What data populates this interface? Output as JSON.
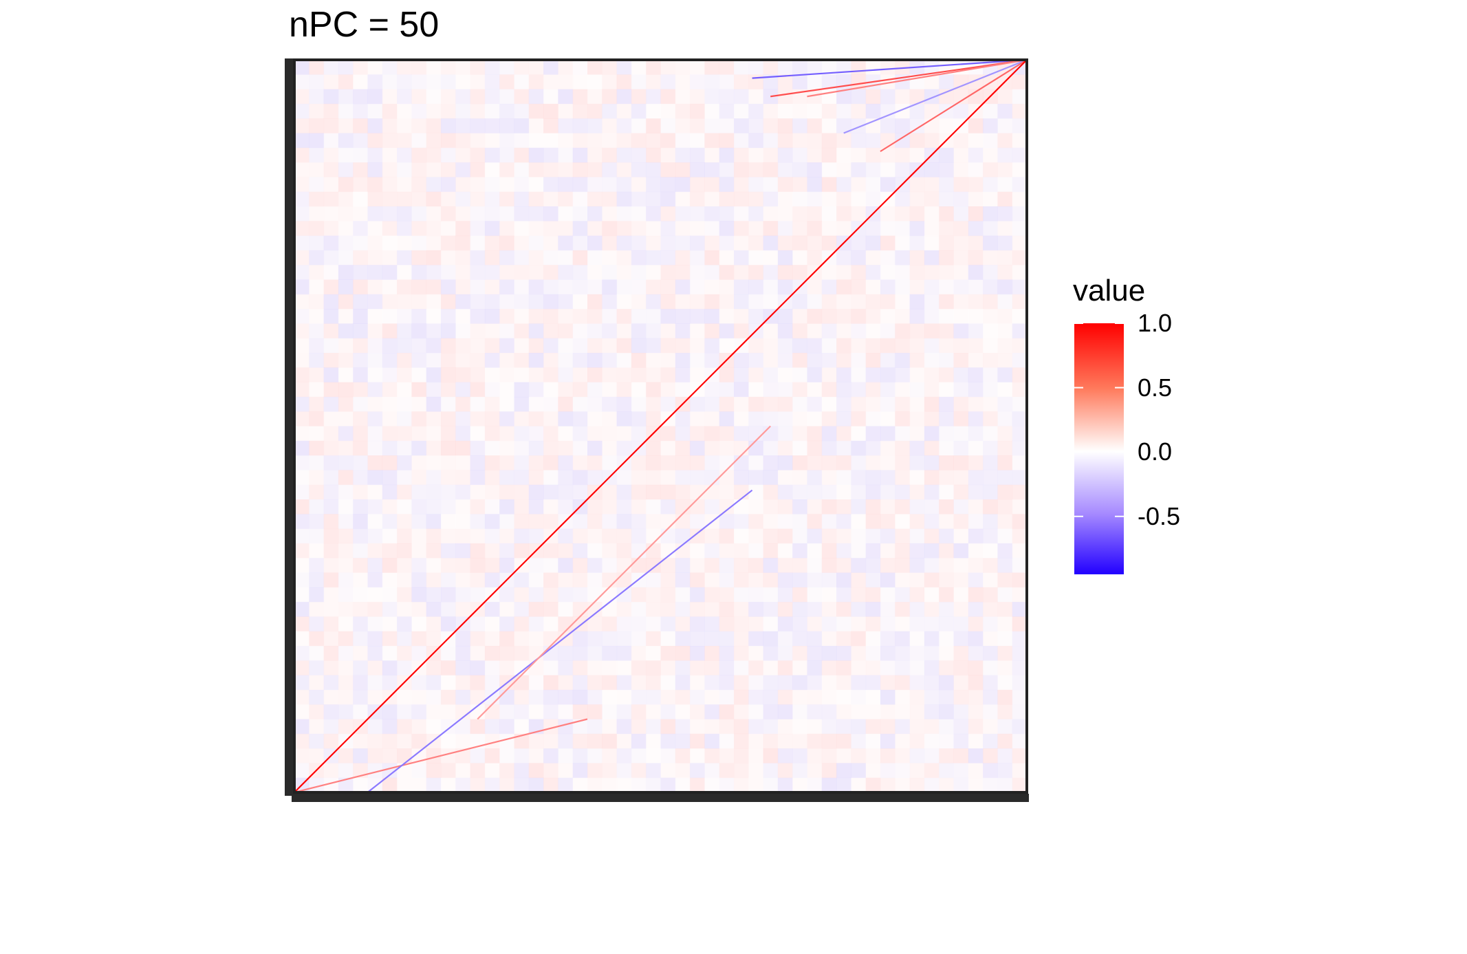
{
  "chart_data": {
    "type": "heatmap",
    "title": "nPC = 50",
    "xlabel": "",
    "ylabel": "",
    "grid": false,
    "legend": {
      "title": "value",
      "position": "right",
      "range": [
        -0.95,
        1.0
      ],
      "ticks": [
        {
          "value": 1.0,
          "label": "1.0"
        },
        {
          "value": 0.5,
          "label": "0.5"
        },
        {
          "value": 0.0,
          "label": "0.0"
        },
        {
          "value": -0.5,
          "label": "-0.5"
        }
      ],
      "colors": {
        "low": "#2200ff",
        "mid": "#ffffff",
        "high": "#ff0000"
      }
    },
    "matrix": {
      "rows": 400,
      "cols": 400,
      "description_values": {
        "main_diagonal": 1.0,
        "background_range": [
          -0.15,
          0.15
        ]
      },
      "off_diagonal_bands": [
        {
          "offset": 140,
          "from_col": 0,
          "to_col": 130,
          "value": -0.7
        },
        {
          "offset": 120,
          "from_col": 0,
          "to_col": 160,
          "value": 0.5
        },
        {
          "offset": 170,
          "from_col": 0,
          "to_col": 100,
          "value": -0.6
        },
        {
          "offset": 200,
          "from_col": 0,
          "to_col": 80,
          "value": 0.6
        },
        {
          "offset": 230,
          "from_col": 0,
          "to_col": 60,
          "value": -0.5
        },
        {
          "offset": 85,
          "from_col": 40,
          "to_col": 250,
          "value": -0.5
        },
        {
          "offset": 60,
          "from_col": 100,
          "to_col": 260,
          "value": 0.4
        },
        {
          "offset": -140,
          "from_col": 250,
          "to_col": 400,
          "value": -0.6
        },
        {
          "offset": -120,
          "from_col": 260,
          "to_col": 400,
          "value": 0.7
        },
        {
          "offset": -100,
          "from_col": 280,
          "to_col": 400,
          "value": 0.5
        },
        {
          "offset": -60,
          "from_col": 300,
          "to_col": 400,
          "value": -0.4
        },
        {
          "offset": -30,
          "from_col": 320,
          "to_col": 400,
          "value": 0.6
        }
      ]
    }
  }
}
